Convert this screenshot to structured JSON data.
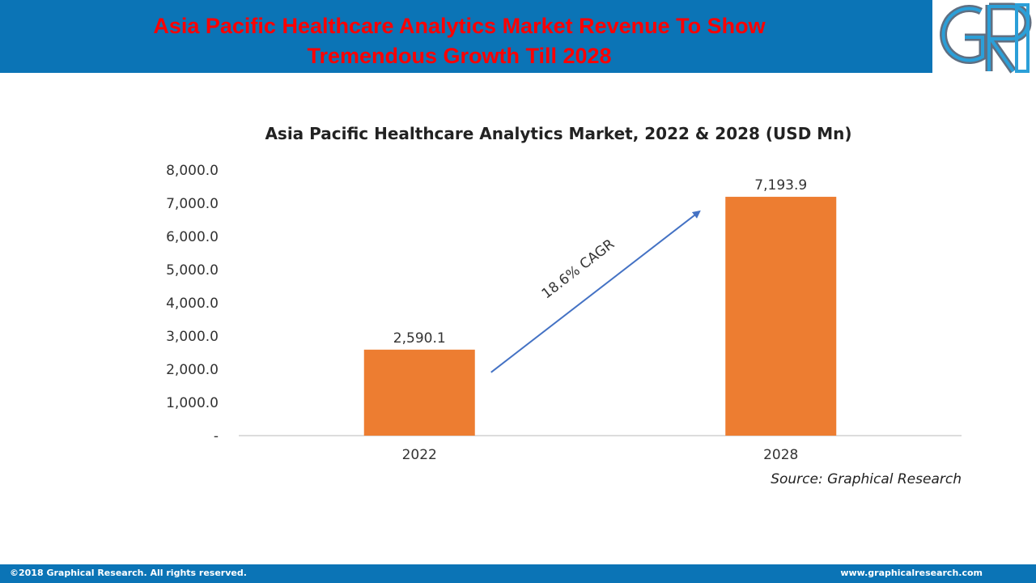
{
  "header": {
    "title_line1": "Asia Pacific Healthcare Analytics Market Revenue To Show",
    "title_line2": "Tremendous Growth Till 2028",
    "bar_color": "#0b74b6",
    "title_color": "#ff0000"
  },
  "logo": {
    "icon": "graphical-research-logo-icon",
    "text": "GR"
  },
  "chart_data": {
    "type": "bar",
    "title": "Asia Pacific Healthcare Analytics Market, 2022 & 2028 (USD Mn)",
    "categories": [
      "2022",
      "2028"
    ],
    "values": [
      2590.1,
      7193.9
    ],
    "value_labels": [
      "2,590.1",
      "7,193.9"
    ],
    "ylim": [
      0,
      8000
    ],
    "yticks": [
      0,
      1000,
      2000,
      3000,
      4000,
      5000,
      6000,
      7000,
      8000
    ],
    "ytick_labels": [
      "-",
      "1,000.0",
      "2,000.0",
      "3,000.0",
      "4,000.0",
      "5,000.0",
      "6,000.0",
      "7,000.0",
      "8,000.0"
    ],
    "xlabel": "",
    "ylabel": "",
    "grid": false,
    "bar_color": "#ed7d31",
    "annotation": "18.6% CAGR",
    "arrow_color": "#4472c4",
    "source": "Source: Graphical Research"
  },
  "footer": {
    "copyright": "©2018 Graphical Research. All rights reserved.",
    "website": "www.graphicalresearch.com"
  }
}
